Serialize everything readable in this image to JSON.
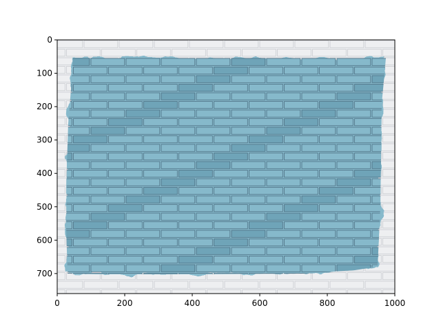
{
  "figure": {
    "image_description": "photo of a white-painted brick wall with a large rectangular patch painted light blue in the center",
    "colors": {
      "brick_blue": "#86b9cb",
      "brick_blue_dark": "#6fa4b8",
      "mortar_blue": "#4d6f82",
      "white_brick": "#eeeff1",
      "white_mortar": "#c9cbd0"
    }
  },
  "axes": {
    "x_range": [
      0,
      1000
    ],
    "y_range": [
      760,
      0
    ],
    "x_ticks": [
      "0",
      "200",
      "400",
      "600",
      "800",
      "1000"
    ],
    "y_ticks": [
      "0",
      "100",
      "200",
      "300",
      "400",
      "500",
      "600",
      "700"
    ]
  }
}
